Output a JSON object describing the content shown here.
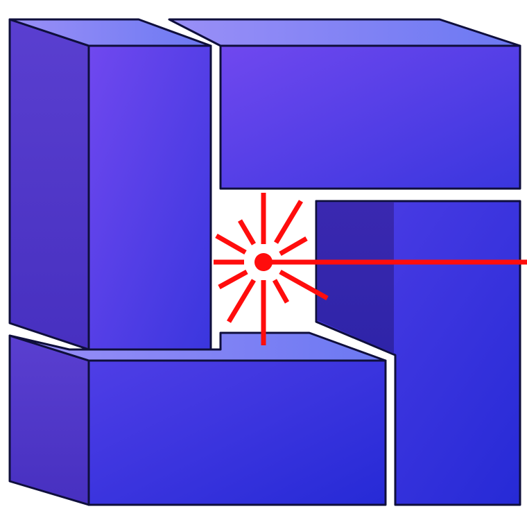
{
  "graphic": {
    "kind": "logo",
    "subject": "four-blocks-with-laser-burst",
    "colors": {
      "block_light": "#8b7df5",
      "block_mid": "#5a48ec",
      "block_dark": "#2a2cd8",
      "block_side": "#4a36c8",
      "outline": "#0f0f3c",
      "laser": "#ff0d0d",
      "background": "#ffffff"
    }
  }
}
